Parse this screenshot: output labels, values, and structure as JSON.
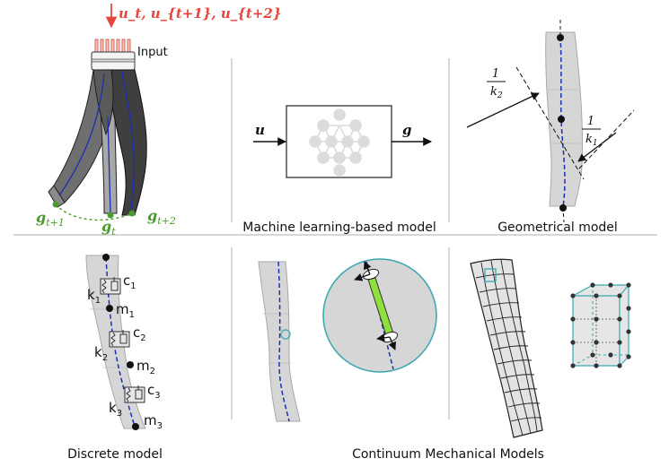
{
  "panel_soft_robot": {
    "input_vectors": "u_t, u_{t+1}, u_{t+2}",
    "input_label": "Input",
    "outputs": {
      "g_t1": {
        "main": "g",
        "sub": "t+1"
      },
      "g_t": {
        "main": "g",
        "sub": "t"
      },
      "g_t2": {
        "main": "g",
        "sub": "t+2"
      }
    },
    "colors": {
      "input": "#e8453c",
      "outputs": "#4a9a2c",
      "backbone": "#1b2fb4"
    }
  },
  "panel_ml": {
    "caption": "Machine learning-based model",
    "input_symbol": "u",
    "output_symbol": "g"
  },
  "panel_geometric": {
    "caption": "Geometrical model",
    "curvature_1": {
      "numerator": "1",
      "denominator": "k",
      "sub": "1"
    },
    "curvature_2": {
      "numerator": "1",
      "denominator": "k",
      "sub": "2"
    }
  },
  "panel_discrete": {
    "caption": "Discrete model",
    "elements": [
      {
        "k": "k",
        "k_sub": "1",
        "c": "c",
        "c_sub": "1",
        "m": "m",
        "m_sub": "1"
      },
      {
        "k": "k",
        "k_sub": "2",
        "c": "c",
        "c_sub": "2",
        "m": "m",
        "m_sub": "2"
      },
      {
        "k": "k",
        "k_sub": "3",
        "c": "c",
        "c_sub": "3",
        "m": "m",
        "m_sub": "3"
      }
    ]
  },
  "panel_continuum": {
    "caption": "Continuum Mechanical Models",
    "accent_color": "#3aa6b0",
    "rod_color": "#8ee03a"
  }
}
